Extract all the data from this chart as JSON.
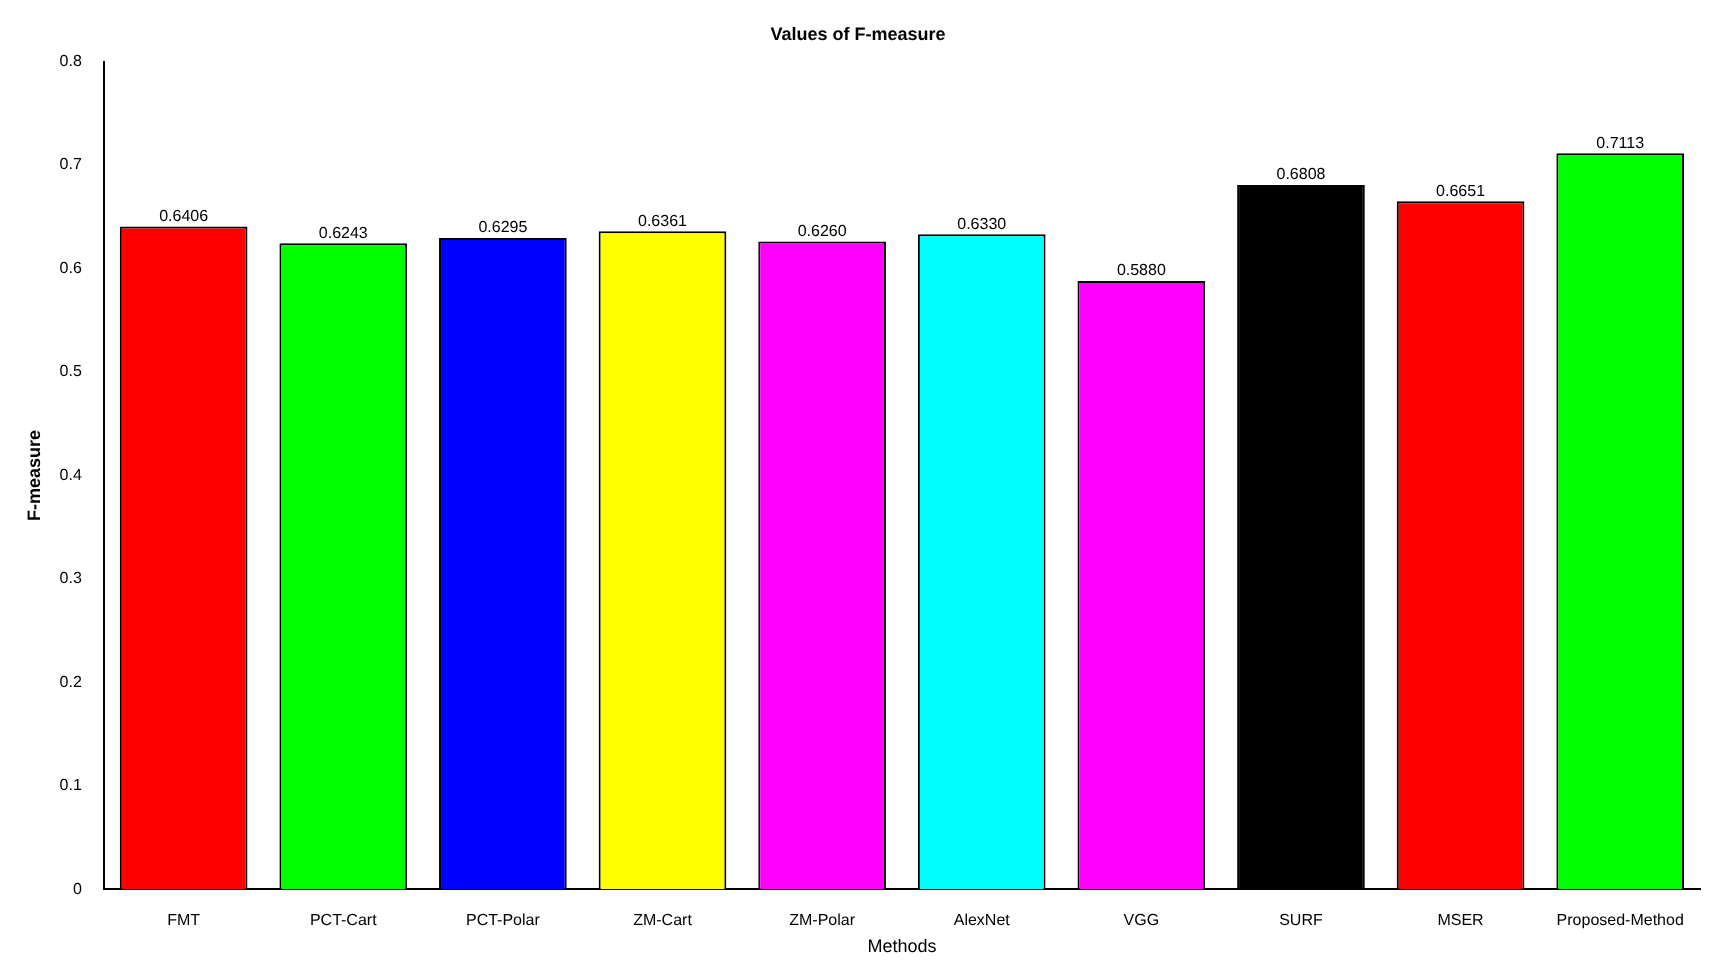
{
  "chart_data": {
    "type": "bar",
    "title": "Values of F-measure",
    "xlabel": "Methods",
    "ylabel": "F-measure",
    "categories": [
      "FMT",
      "PCT-Cart",
      "PCT-Polar",
      "ZM-Cart",
      "ZM-Polar",
      "AlexNet",
      "VGG",
      "SURF",
      "MSER",
      "Proposed-Method"
    ],
    "values": [
      0.6406,
      0.6243,
      0.6295,
      0.6361,
      0.626,
      0.633,
      0.588,
      0.6808,
      0.6651,
      0.7113
    ],
    "value_labels": [
      "0.6406",
      "0.6243",
      "0.6295",
      "0.6361",
      "0.6260",
      "0.6330",
      "0.5880",
      "0.6808",
      "0.6651",
      "0.7113"
    ],
    "colors": [
      "#ff0000",
      "#00ff00",
      "#0000ff",
      "#ffff00",
      "#ff00ff",
      "#00ffff",
      "#ff00ff",
      "#000000",
      "#ff0000",
      "#00ff00"
    ],
    "ylim": [
      0,
      0.8
    ],
    "yticks": [
      0,
      0.1,
      0.2,
      0.3,
      0.4,
      0.5,
      0.6,
      0.7,
      0.8
    ],
    "grid": false,
    "legend": false
  }
}
